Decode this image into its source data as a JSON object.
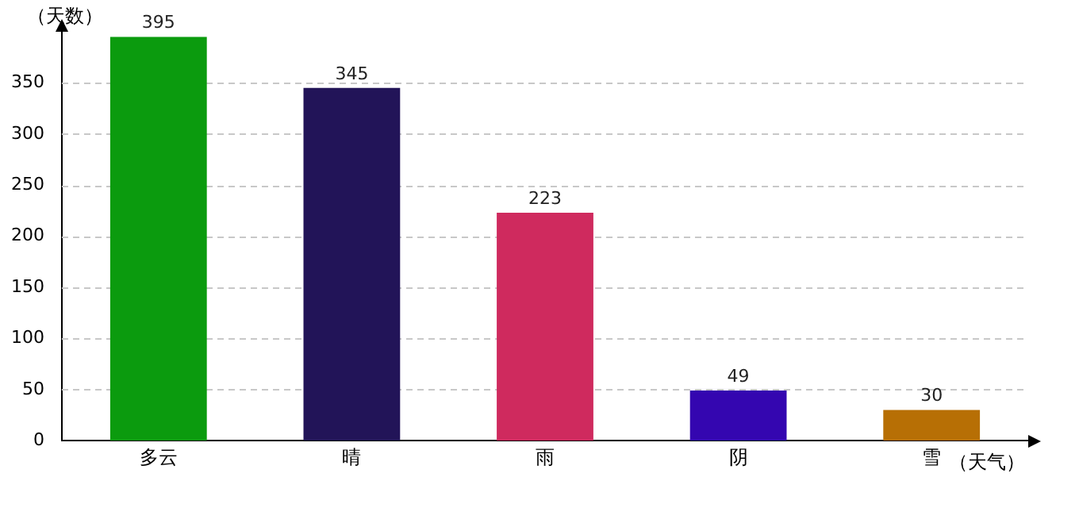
{
  "chart_data": {
    "type": "bar",
    "xlabel": "（天气）",
    "ylabel": "（天数）",
    "categories": [
      "多云",
      "晴",
      "雨",
      "阴",
      "雪"
    ],
    "values": [
      395,
      345,
      223,
      49,
      30
    ],
    "colors": [
      "#0b9b0e",
      "#221458",
      "#cf2a5e",
      "#3406b0",
      "#b76f05"
    ],
    "ylim": [
      0,
      400
    ],
    "yticks": [
      0,
      50,
      100,
      150,
      200,
      250,
      300,
      350
    ],
    "grid": "y",
    "data_labels": true,
    "legend": false
  }
}
